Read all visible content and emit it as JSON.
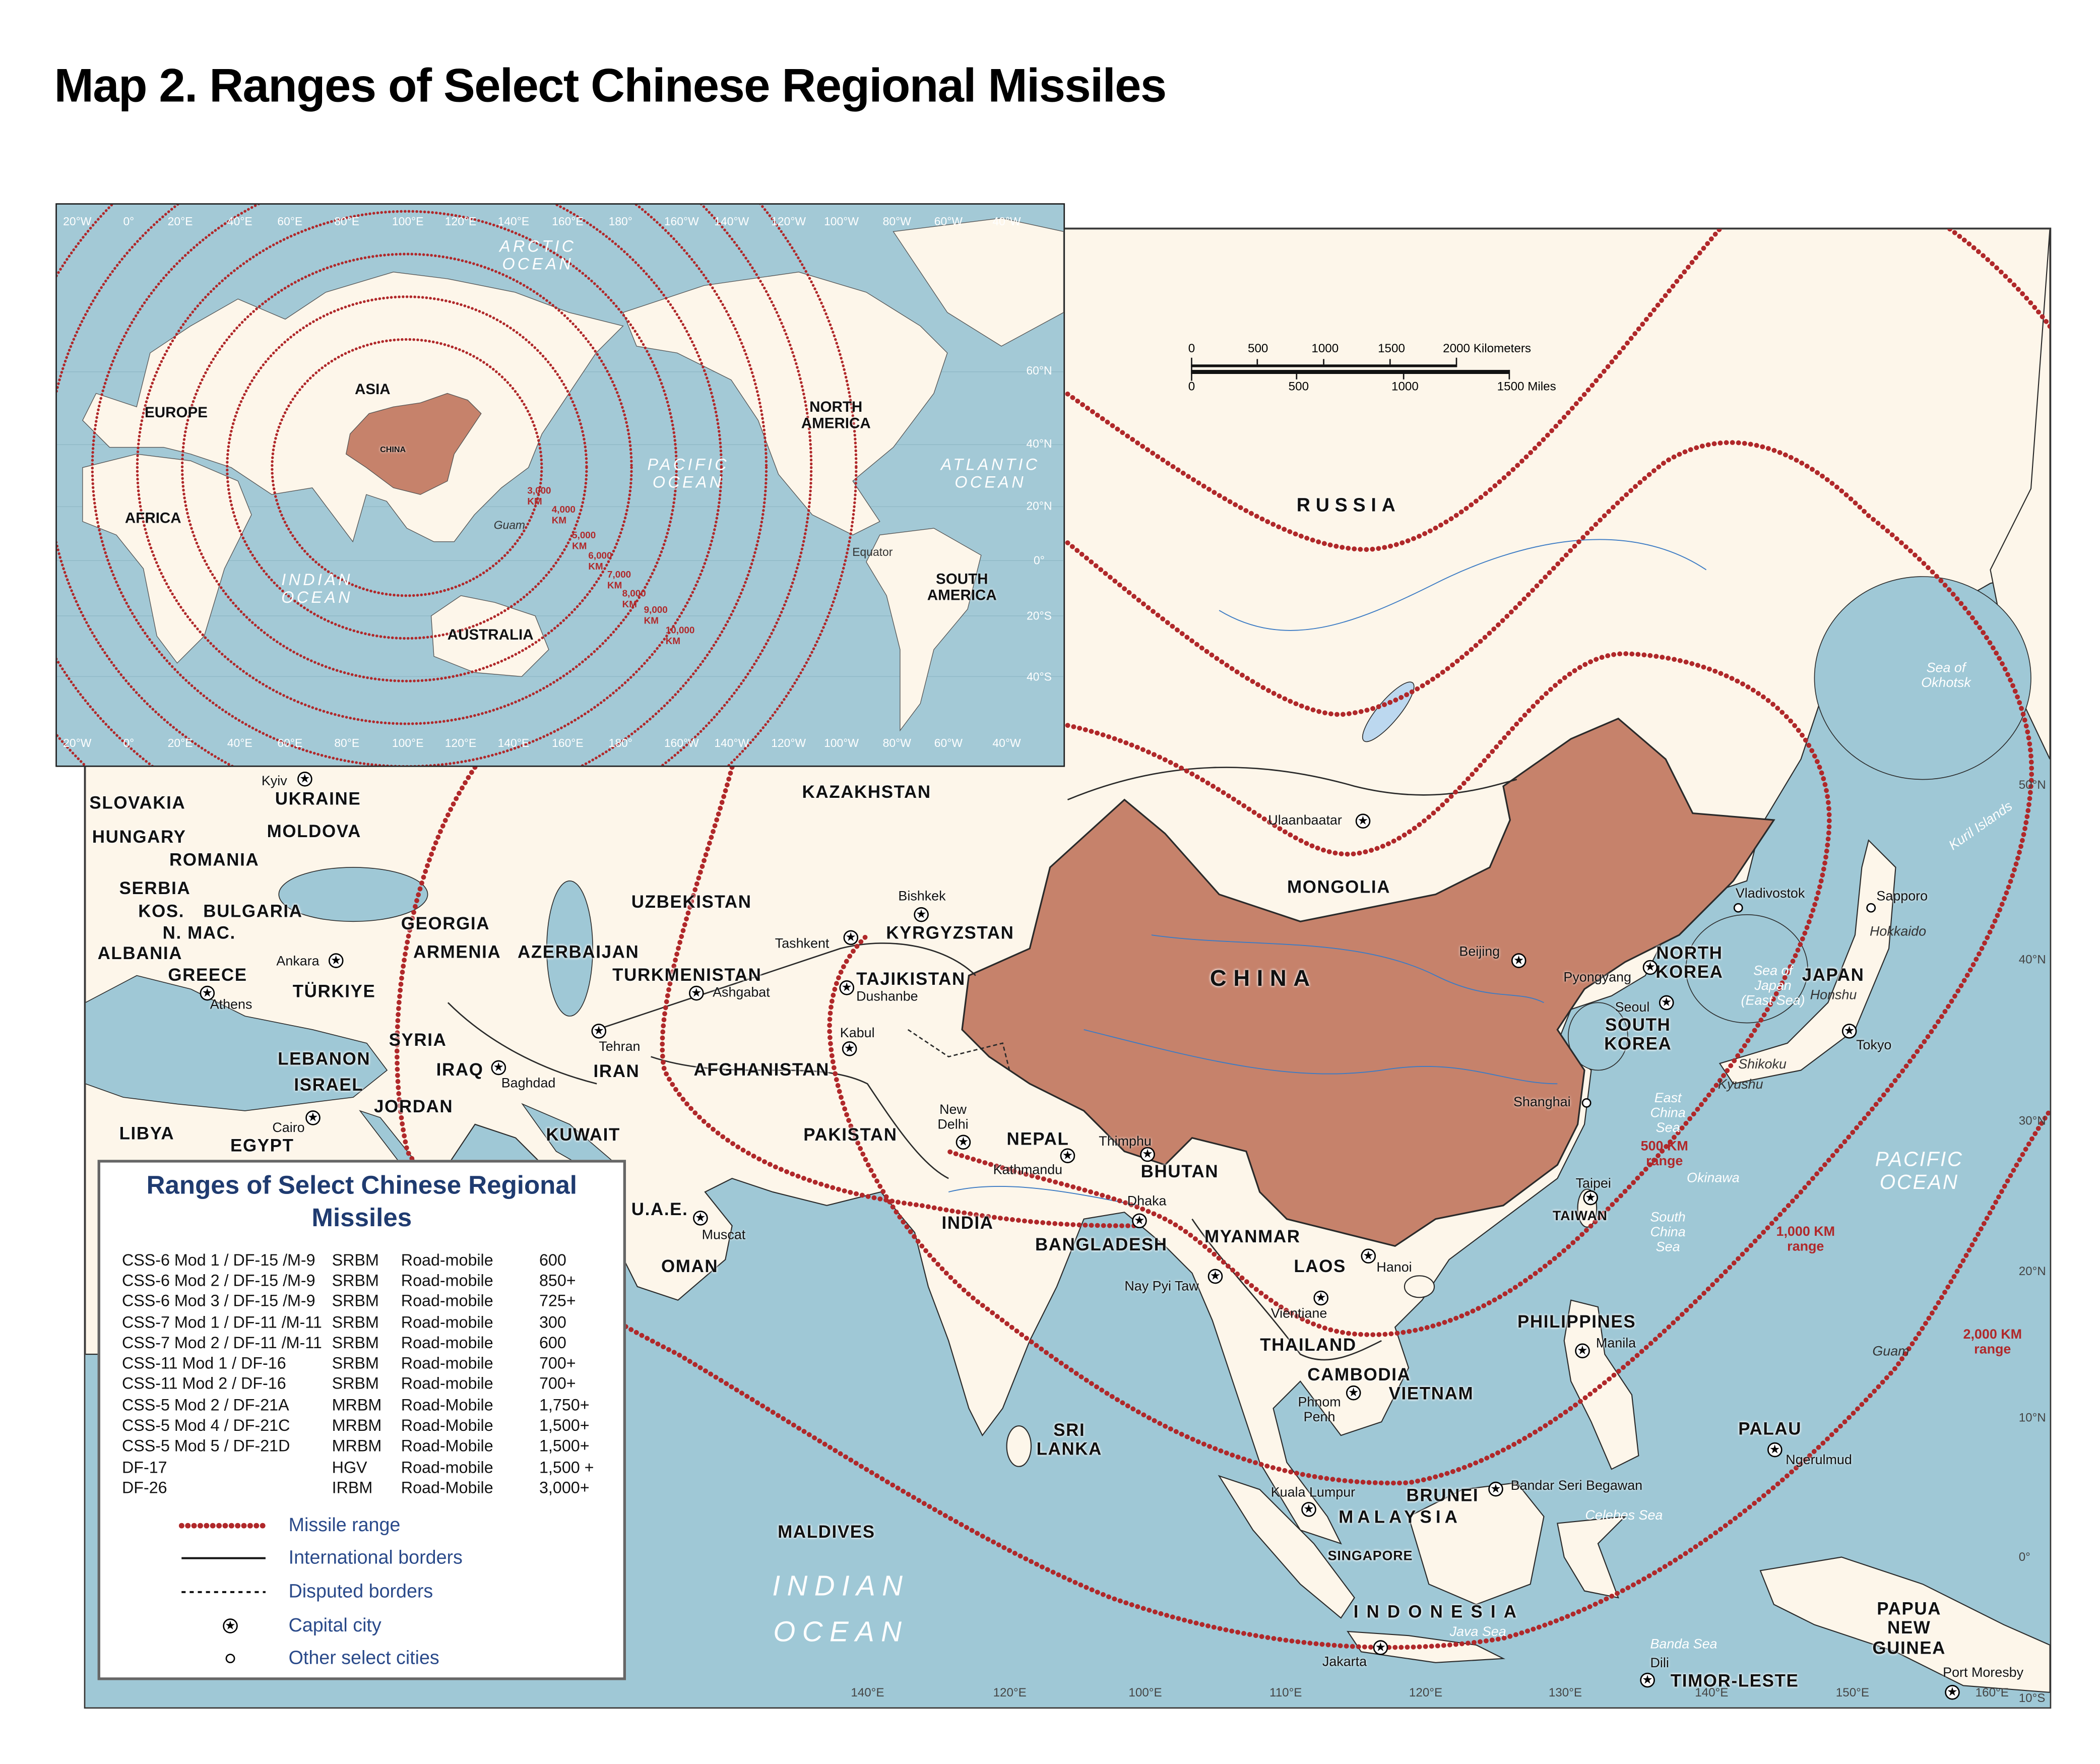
{
  "title": "Map 2. Ranges of Select Chinese Regional Missiles",
  "colors": {
    "ocean": "#9fc8d6",
    "land": "#fdf6ea",
    "china": "#c6826b",
    "missile_range": "#b0282a",
    "legend_text": "#2a4a8a",
    "legend_title": "#1f3b70"
  },
  "inset": {
    "lon_labels": [
      "20°W",
      "0°",
      "20°E",
      "40°E",
      "60°E",
      "80°E",
      "100°E",
      "120°E",
      "140°E",
      "160°E",
      "180°",
      "160°W",
      "140°W",
      "120°W",
      "100°W",
      "80°W",
      "60°W",
      "40°W"
    ],
    "lat_labels": [
      "60°N",
      "40°N",
      "20°N",
      "0°",
      "20°S",
      "40°S"
    ],
    "continents": [
      "ASIA",
      "EUROPE",
      "CHINA",
      "AFRICA",
      "NORTH\nAMERICA",
      "AUSTRALIA",
      "SOUTH\nAMERICA"
    ],
    "waters": [
      "ARCTIC  OCEAN",
      "PACIFIC\nOCEAN",
      "ATLANTIC\nOCEAN",
      "INDIAN\nOCEAN"
    ],
    "places": [
      "Guam",
      "Equator"
    ],
    "range_labels": [
      "3,000 KM",
      "4,000 KM",
      "5,000 KM",
      "6,000 KM",
      "7,000 KM",
      "8,000 KM",
      "9,000 KM",
      "10,000 KM"
    ]
  },
  "scale_bar": {
    "km_ticks": [
      "0",
      "500",
      "1000",
      "1500",
      "2000 Kilometers"
    ],
    "mi_ticks": [
      "0",
      "500",
      "1000",
      "1500 Miles"
    ]
  },
  "main_map": {
    "countries": [
      "SLOVAKIA",
      "UKRAINE",
      "HUNGARY",
      "MOLDOVA",
      "ROMANIA",
      "SERBIA",
      "KOS.",
      "BULGARIA",
      "N. MAC.",
      "ALBANIA",
      "GREECE",
      "GEORGIA",
      "ARMENIA",
      "AZERBAIJAN",
      "TÜRKIYE",
      "SYRIA",
      "LEBANON",
      "ISRAEL",
      "IRAQ",
      "JORDAN",
      "LIBYA",
      "EGYPT",
      "KUWAIT",
      "IRAN",
      "U.A.E.",
      "OMAN",
      "KAZAKHSTAN",
      "UZBEKISTAN",
      "TURKMENISTAN",
      "KYRGYZSTAN",
      "TAJIKISTAN",
      "AFGHANISTAN",
      "PAKISTAN",
      "INDIA",
      "NEPAL",
      "BHUTAN",
      "BANGLADESH",
      "MYANMAR",
      "LAOS",
      "THAILAND",
      "CAMBODIA",
      "VIETNAM",
      "MONGOLIA",
      "NORTH\nKOREA",
      "SOUTH\nKOREA",
      "JAPAN",
      "PHILIPPINES",
      "PALAU",
      "BRUNEI",
      "SRI\nLANKA",
      "MALDIVES",
      "PAPUA\nNEW\nGUINEA",
      "TIMOR-LESTE"
    ],
    "feature_labels": {
      "china": "CHINA",
      "russia": "RUSSIA",
      "malaysia": "MALAYSIA",
      "indonesia": "INDONESIA",
      "singapore": "SINGAPORE",
      "taiwan": "TAIWAN"
    },
    "capitals": [
      "Kyiv",
      "Ankara",
      "Athens",
      "Cairo",
      "Baghdad",
      "Tehran",
      "Ashgabat",
      "Tashkent",
      "Bishkek",
      "Dushanbe",
      "Kabul",
      "New\nDelhi",
      "Kathmandu",
      "Thimphu",
      "Dhaka",
      "Muscat",
      "Ulaanbaatar",
      "Beijing",
      "Pyongyang",
      "Seoul",
      "Tokyo",
      "Taipei",
      "Hanoi",
      "Nay Pyi Taw",
      "Vientiane",
      "Phnom\nPenh",
      "Manila",
      "Kuala Lumpur",
      "Bandar Seri Begawan",
      "Jakarta",
      "Dili",
      "Port Moresby",
      "Ngerulmud"
    ],
    "other_cities": [
      "Shanghai",
      "Vladivostok",
      "Sapporo"
    ],
    "waters": [
      "Sea of\nOkhotsk",
      "Kuril Islands",
      "Sea of\nJapan\n(East Sea)",
      "East\nChina\nSea",
      "South\nChina\nSea",
      "Okinawa",
      "Java Sea",
      "Banda Sea",
      "Celebes Sea",
      "Guam"
    ],
    "islands": [
      "Hokkaido",
      "Honshu",
      "Shikoku",
      "Kyushu"
    ],
    "oceans": [
      "PACIFIC\nOCEAN",
      "INDIAN\nOCEAN"
    ],
    "range_labels": [
      "500 KM\nrange",
      "1,000 KM\nrange",
      "2,000 KM\nrange"
    ],
    "lat_labels": [
      "50°N",
      "40°N",
      "30°N",
      "20°N",
      "10°N",
      "0°",
      "10°S"
    ],
    "lon_labels": [
      "140°E",
      "120°E",
      "100°E",
      "110°E",
      "120°E",
      "130°E",
      "140°E",
      "150°E",
      "160°E"
    ]
  },
  "legend": {
    "title": "Ranges of Select Chinese Regional Missiles",
    "rows": [
      {
        "name": "CSS-6 Mod 1 / DF-15 /M-9",
        "class": "SRBM",
        "launch": "Road-mobile",
        "range_km": "600"
      },
      {
        "name": "CSS-6 Mod 2 / DF-15 /M-9",
        "class": "SRBM",
        "launch": "Road-mobile",
        "range_km": "850+"
      },
      {
        "name": "CSS-6 Mod 3 / DF-15 /M-9",
        "class": "SRBM",
        "launch": "Road-mobile",
        "range_km": "725+"
      },
      {
        "name": "CSS-7 Mod 1 / DF-11 /M-11",
        "class": "SRBM",
        "launch": "Road-mobile",
        "range_km": "300"
      },
      {
        "name": "CSS-7 Mod 2 / DF-11 /M-11",
        "class": "SRBM",
        "launch": "Road-mobile",
        "range_km": "600"
      },
      {
        "name": "CSS-11 Mod 1 / DF-16",
        "class": "SRBM",
        "launch": "Road-mobile",
        "range_km": "700+"
      },
      {
        "name": "CSS-11 Mod 2 / DF-16",
        "class": "SRBM",
        "launch": "Road-mobile",
        "range_km": "700+"
      },
      {
        "name": "CSS-5 Mod 2 / DF-21A",
        "class": "MRBM",
        "launch": "Road-Mobile",
        "range_km": "1,750+"
      },
      {
        "name": "CSS-5 Mod 4 / DF-21C",
        "class": "MRBM",
        "launch": "Road-Mobile",
        "range_km": "1,500+"
      },
      {
        "name": "CSS-5 Mod 5 / DF-21D",
        "class": "MRBM",
        "launch": "Road-Mobile",
        "range_km": "1,500+"
      },
      {
        "name": "DF-17",
        "class": "HGV",
        "launch": "Road-mobile",
        "range_km": "1,500 +"
      },
      {
        "name": "DF-26",
        "class": "IRBM",
        "launch": "Road-Mobile",
        "range_km": "3,000+"
      }
    ],
    "items": [
      {
        "label": "Missile range",
        "symbol": "dotted-red-line"
      },
      {
        "label": "International borders",
        "symbol": "solid-black-line"
      },
      {
        "label": "Disputed borders",
        "symbol": "dashed-black-line"
      },
      {
        "label": "Capital city",
        "symbol": "circled-star"
      },
      {
        "label": "Other select cities",
        "symbol": "open-circle"
      }
    ]
  }
}
